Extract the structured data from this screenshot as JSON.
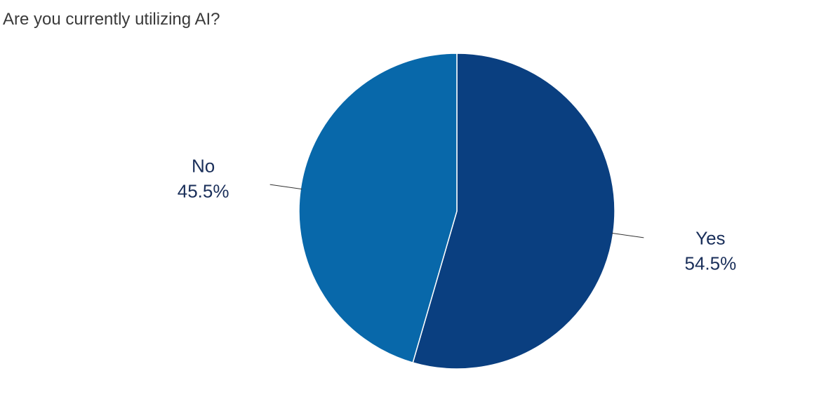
{
  "title": "Are you currently utilizing AI?",
  "chart_data": {
    "type": "pie",
    "title": "Are you currently utilizing AI?",
    "slices": [
      {
        "label": "Yes",
        "value": 54.5,
        "value_label": "54.5%",
        "color": "#0a3f80"
      },
      {
        "label": "No",
        "value": 45.5,
        "value_label": "45.5%",
        "color": "#0868aa"
      }
    ],
    "start_angle": "12 o'clock",
    "direction": "clockwise",
    "label_color": "#1a2f5a",
    "leader_line_color": "#333333",
    "legend": "none"
  }
}
